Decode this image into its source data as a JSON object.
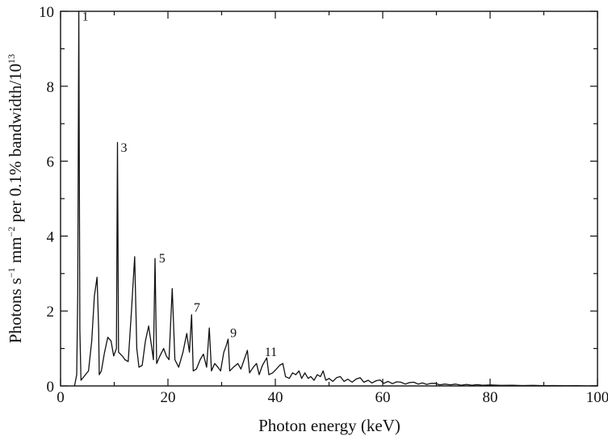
{
  "chart_data": {
    "type": "line",
    "title": "",
    "xlabel": "Photon energy (keV)",
    "ylabel": {
      "prefix": "Photons s",
      "exp1": "−1",
      "mid1": " mm",
      "exp2": "−2",
      "mid2": " per 0.1% bandwidth/10",
      "exp3": "13"
    },
    "xlim": [
      0,
      100
    ],
    "ylim": [
      0,
      10
    ],
    "x_ticks": [
      "0",
      "20",
      "40",
      "60",
      "80",
      "100"
    ],
    "y_ticks": [
      "0",
      "2",
      "4",
      "6",
      "8",
      "10"
    ],
    "grid": false,
    "series": [
      {
        "points": [
          [
            2.6,
            0
          ],
          [
            3.0,
            0.3
          ],
          [
            3.2,
            2.5
          ],
          [
            3.4,
            10
          ],
          [
            3.6,
            1.5
          ],
          [
            3.8,
            0.15
          ],
          [
            5.2,
            0.4
          ],
          [
            5.8,
            1.2
          ],
          [
            6.3,
            2.4
          ],
          [
            6.8,
            2.9
          ],
          [
            7.1,
            1.5
          ],
          [
            7.2,
            0.3
          ],
          [
            7.6,
            0.4
          ],
          [
            8.2,
            0.9
          ],
          [
            8.8,
            1.3
          ],
          [
            9.4,
            1.2
          ],
          [
            9.9,
            0.8
          ],
          [
            10.4,
            1.0
          ],
          [
            10.6,
            6.5
          ],
          [
            10.8,
            0.9
          ],
          [
            11.5,
            0.8
          ],
          [
            12.0,
            0.7
          ],
          [
            12.6,
            0.65
          ],
          [
            13.2,
            2.0
          ],
          [
            13.8,
            3.45
          ],
          [
            14.2,
            1.0
          ],
          [
            14.6,
            0.5
          ],
          [
            15.2,
            0.55
          ],
          [
            15.8,
            1.2
          ],
          [
            16.4,
            1.6
          ],
          [
            17.0,
            1.0
          ],
          [
            17.3,
            0.7
          ],
          [
            17.6,
            3.4
          ],
          [
            17.9,
            0.6
          ],
          [
            18.5,
            0.8
          ],
          [
            19.2,
            1.0
          ],
          [
            19.7,
            0.8
          ],
          [
            20.2,
            0.7
          ],
          [
            20.8,
            2.6
          ],
          [
            21.3,
            0.7
          ],
          [
            22.0,
            0.5
          ],
          [
            22.8,
            0.9
          ],
          [
            23.5,
            1.4
          ],
          [
            24.0,
            0.9
          ],
          [
            24.4,
            1.9
          ],
          [
            24.7,
            0.4
          ],
          [
            25.3,
            0.45
          ],
          [
            26.0,
            0.7
          ],
          [
            26.6,
            0.85
          ],
          [
            27.2,
            0.5
          ],
          [
            27.7,
            1.55
          ],
          [
            28.1,
            0.4
          ],
          [
            28.7,
            0.6
          ],
          [
            29.3,
            0.5
          ],
          [
            29.8,
            0.4
          ],
          [
            30.4,
            0.9
          ],
          [
            30.8,
            1.05
          ],
          [
            31.2,
            1.25
          ],
          [
            31.5,
            0.4
          ],
          [
            32.2,
            0.5
          ],
          [
            33.0,
            0.6
          ],
          [
            33.6,
            0.45
          ],
          [
            34.2,
            0.7
          ],
          [
            34.8,
            0.95
          ],
          [
            35.2,
            0.35
          ],
          [
            35.9,
            0.5
          ],
          [
            36.5,
            0.6
          ],
          [
            37.0,
            0.3
          ],
          [
            37.6,
            0.55
          ],
          [
            38.0,
            0.65
          ],
          [
            38.4,
            0.75
          ],
          [
            38.8,
            0.3
          ],
          [
            39.5,
            0.35
          ],
          [
            40.2,
            0.45
          ],
          [
            40.8,
            0.55
          ],
          [
            41.4,
            0.6
          ],
          [
            41.9,
            0.25
          ],
          [
            42.6,
            0.2
          ],
          [
            43.2,
            0.35
          ],
          [
            43.8,
            0.3
          ],
          [
            44.4,
            0.4
          ],
          [
            44.9,
            0.2
          ],
          [
            45.5,
            0.35
          ],
          [
            46.1,
            0.2
          ],
          [
            46.6,
            0.25
          ],
          [
            47.2,
            0.15
          ],
          [
            47.8,
            0.3
          ],
          [
            48.4,
            0.25
          ],
          [
            48.9,
            0.4
          ],
          [
            49.4,
            0.15
          ],
          [
            50.0,
            0.2
          ],
          [
            50.7,
            0.12
          ],
          [
            51.4,
            0.22
          ],
          [
            52.1,
            0.25
          ],
          [
            52.8,
            0.12
          ],
          [
            53.5,
            0.18
          ],
          [
            54.3,
            0.1
          ],
          [
            55.0,
            0.18
          ],
          [
            55.8,
            0.22
          ],
          [
            56.5,
            0.1
          ],
          [
            57.3,
            0.15
          ],
          [
            58.0,
            0.08
          ],
          [
            58.8,
            0.14
          ],
          [
            59.5,
            0.16
          ],
          [
            60.2,
            0.07
          ],
          [
            61.0,
            0.12
          ],
          [
            61.8,
            0.06
          ],
          [
            62.6,
            0.11
          ],
          [
            63.4,
            0.1
          ],
          [
            64.2,
            0.05
          ],
          [
            65.0,
            0.09
          ],
          [
            65.8,
            0.1
          ],
          [
            66.6,
            0.05
          ],
          [
            67.4,
            0.08
          ],
          [
            68.2,
            0.04
          ],
          [
            69.0,
            0.07
          ],
          [
            69.8,
            0.07
          ],
          [
            70.6,
            0.03
          ],
          [
            71.6,
            0.05
          ],
          [
            72.6,
            0.03
          ],
          [
            73.6,
            0.05
          ],
          [
            74.6,
            0.02
          ],
          [
            75.6,
            0.04
          ],
          [
            76.6,
            0.02
          ],
          [
            77.6,
            0.035
          ],
          [
            78.6,
            0.02
          ],
          [
            80,
            0.025
          ],
          [
            82,
            0.015
          ],
          [
            84,
            0.02
          ],
          [
            86,
            0.01
          ],
          [
            88,
            0.015
          ],
          [
            90,
            0.008
          ],
          [
            92,
            0.01
          ],
          [
            94,
            0.005
          ],
          [
            96,
            0.008
          ],
          [
            98,
            0.003
          ],
          [
            100,
            0.004
          ]
        ]
      }
    ],
    "peak_labels": [
      {
        "text": "1",
        "x": 4.0,
        "y": 9.75
      },
      {
        "text": "3",
        "x": 11.2,
        "y": 6.25
      },
      {
        "text": "5",
        "x": 18.3,
        "y": 3.3
      },
      {
        "text": "7",
        "x": 24.8,
        "y": 1.98
      },
      {
        "text": "9",
        "x": 31.6,
        "y": 1.3
      },
      {
        "text": "11",
        "x": 38.0,
        "y": 0.8
      }
    ]
  }
}
